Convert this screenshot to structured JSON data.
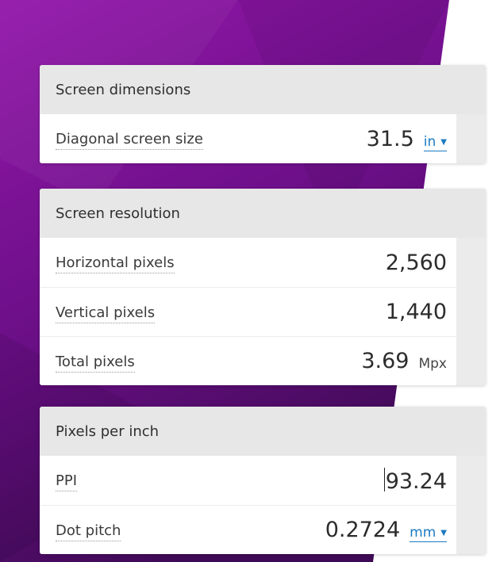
{
  "colors": {
    "purple_light": "#9013a8",
    "purple_dark": "#4a0a5e",
    "link_blue": "#1a7ac2"
  },
  "screen_dimensions": {
    "title": "Screen dimensions",
    "diagonal": {
      "label": "Diagonal screen size",
      "value": "31.5",
      "unit": "in",
      "unit_caret_icon": "caret-down-icon"
    }
  },
  "screen_resolution": {
    "title": "Screen resolution",
    "horizontal": {
      "label": "Horizontal pixels",
      "value": "2,560"
    },
    "vertical": {
      "label": "Vertical pixels",
      "value": "1,440"
    },
    "total": {
      "label": "Total pixels",
      "value": "3.69",
      "unit": "Mpx"
    }
  },
  "pixels_per_inch": {
    "title": "Pixels per inch",
    "ppi": {
      "label": "PPI",
      "value": "93.24"
    },
    "dot_pitch": {
      "label": "Dot pitch",
      "value": "0.2724",
      "unit": "mm",
      "unit_caret_icon": "caret-down-icon"
    }
  }
}
